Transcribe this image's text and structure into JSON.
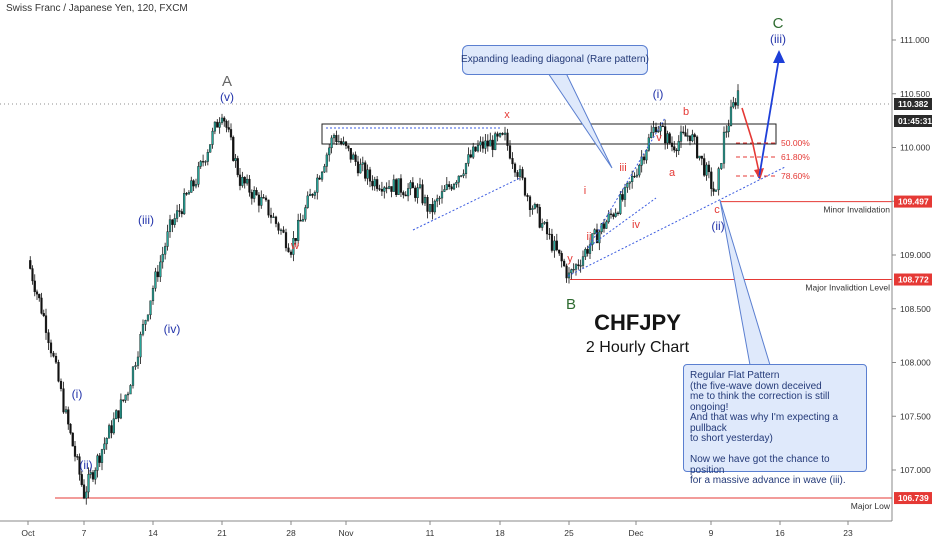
{
  "header": {
    "symbol_line": "Swiss Franc / Japanese Yen, 120, FXCM"
  },
  "title": {
    "main": "CHFJPY",
    "sub": "2 Hourly Chart"
  },
  "notes": {
    "pattern": "Expanding leading diagonal (Rare pattern)",
    "flat": "Regular Flat Pattern\n(the five-wave down deceived\nme to think the correction is still ongoing!\nAnd that was why I'm expecting a pullback\nto short yesterday)\n\nNow we have got the chance to position\nfor a massive advance in wave (iii)."
  },
  "price_axis": {
    "ticks": [
      "111.000",
      "110.500",
      "110.000",
      "109.500",
      "109.000",
      "108.500",
      "108.000",
      "107.500",
      "107.000"
    ],
    "current_price": "110.382",
    "countdown": "01:45:31"
  },
  "time_axis": {
    "ticks": [
      "Oct",
      "7",
      "14",
      "21",
      "28",
      "Nov",
      "11",
      "18",
      "25",
      "Dec",
      "9",
      "16",
      "23"
    ]
  },
  "levels": [
    {
      "label": "Minor Invalidation",
      "price": "109.497"
    },
    {
      "label": "Major Invalidtion Level",
      "price": "108.772"
    },
    {
      "label": "Major Low",
      "price": "106.739"
    }
  ],
  "fibs": [
    "50.00%",
    "61.80%",
    "78.60%"
  ],
  "wave_labels": {
    "A": "A",
    "B": "B",
    "C": "C",
    "blue": [
      "(v)",
      "(iii)",
      "(iv)",
      "(i)",
      "(ii)",
      "(i)",
      "(ii)",
      "(iii)"
    ],
    "red": [
      "x",
      "w",
      "y",
      "i",
      "ii",
      "iii",
      "iv",
      "v",
      "a",
      "b",
      "c"
    ]
  },
  "colors": {
    "bull": "#26a69a",
    "bear": "#111111",
    "red": "#e53935",
    "blue": "#2233aa",
    "green": "#2e6b30",
    "accent_blue": "#1e3fd8"
  },
  "chart_data": {
    "type": "line",
    "title": "CHFJPY",
    "subtitle": "2 Hourly Chart",
    "xlabel": "",
    "ylabel": "",
    "ylim": [
      106.6,
      111.3
    ],
    "x": [
      "Oct 1",
      "Oct 3",
      "Oct 5",
      "Oct 7",
      "Oct 9",
      "Oct 12",
      "Oct 14",
      "Oct 16",
      "Oct 19",
      "Oct 21",
      "Oct 23",
      "Oct 26",
      "Oct 28",
      "Nov 1",
      "Nov 4",
      "Nov 9",
      "Nov 11",
      "Nov 16",
      "Nov 18",
      "Nov 21",
      "Nov 25",
      "Nov 27",
      "Dec 1",
      "Dec 3",
      "Dec 5",
      "Dec 7",
      "Dec 9",
      "Dec 10",
      "Dec 11"
    ],
    "series": [
      {
        "name": "CHFJPY",
        "values": [
          108.95,
          108.35,
          107.5,
          106.78,
          107.2,
          107.75,
          108.7,
          109.25,
          109.7,
          110.35,
          109.7,
          109.45,
          109.07,
          110.12,
          109.7,
          109.58,
          109.4,
          110.0,
          110.08,
          109.5,
          108.8,
          109.1,
          109.55,
          110.22,
          110.02,
          110.13,
          109.55,
          110.1,
          110.52
        ]
      }
    ],
    "grid": false
  }
}
